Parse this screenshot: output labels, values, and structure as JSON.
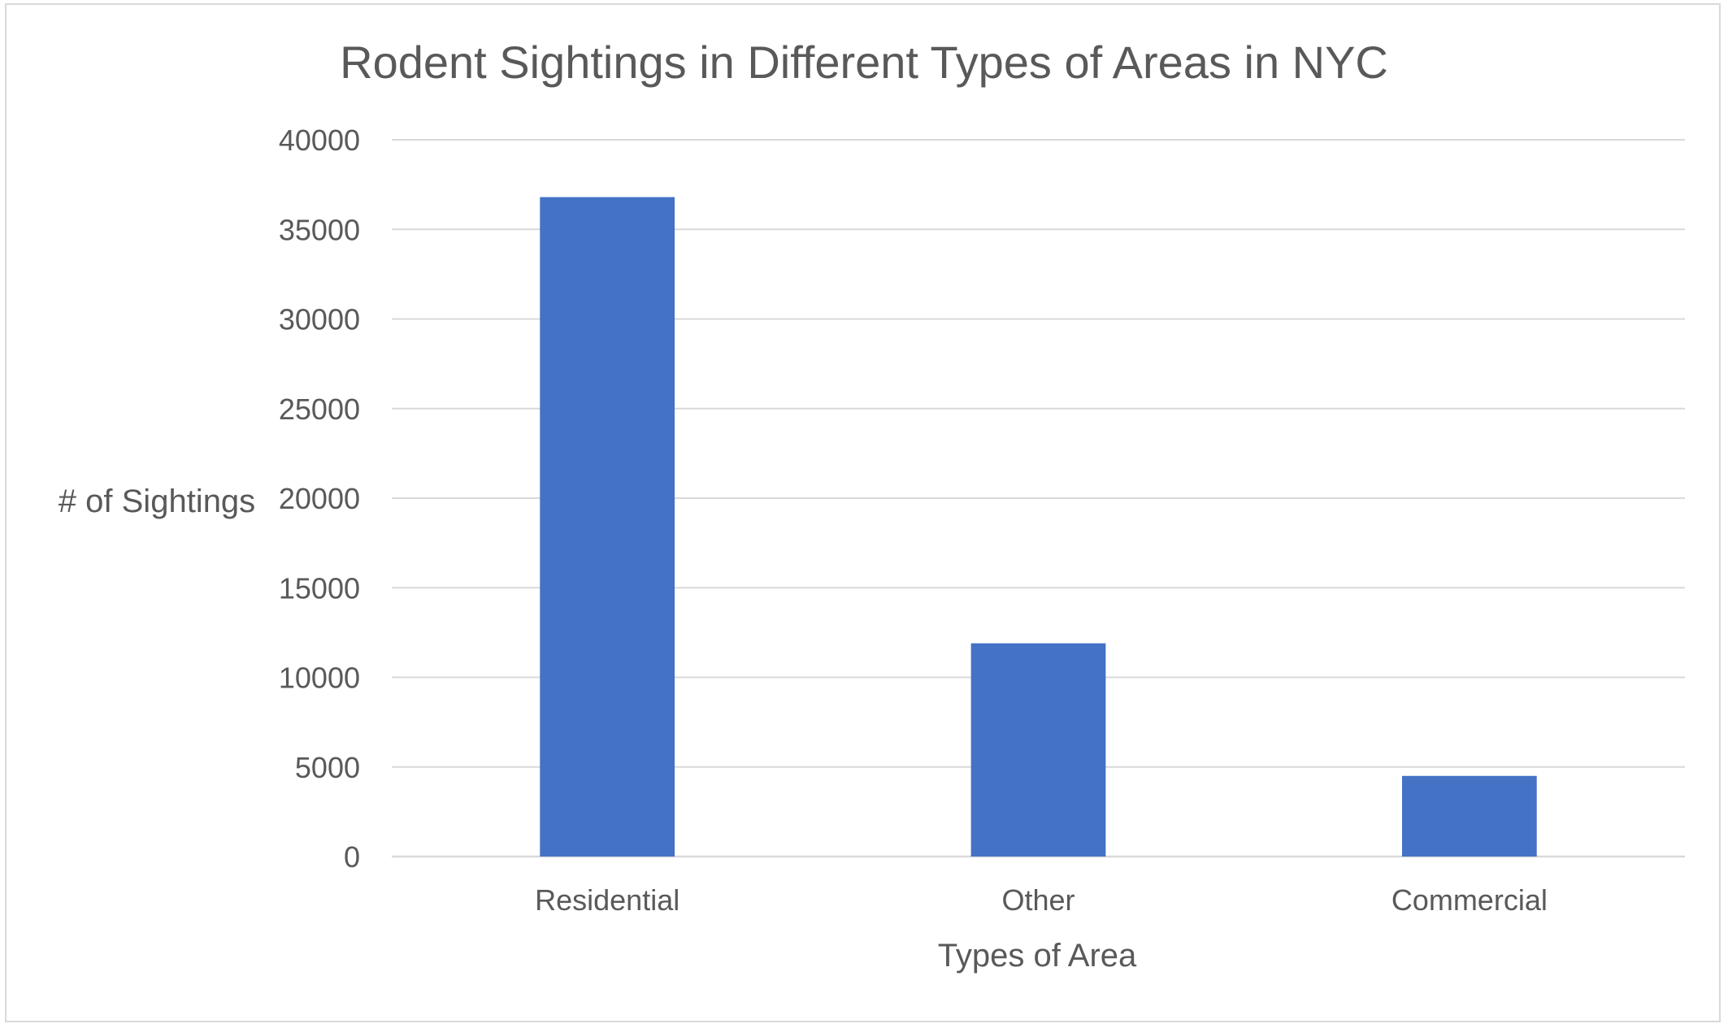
{
  "chart_data": {
    "type": "bar",
    "title": "Rodent Sightings in Different Types of Areas in NYC",
    "xlabel": "Types of Area",
    "ylabel": "# of Sightings",
    "categories": [
      "Residential",
      "Other",
      "Commercial"
    ],
    "values": [
      36800,
      11900,
      4500
    ],
    "ylim": [
      0,
      40000
    ],
    "yticks": [
      0,
      5000,
      10000,
      15000,
      20000,
      25000,
      30000,
      35000,
      40000
    ],
    "ytick_labels": [
      "0",
      "5000",
      "10000",
      "15000",
      "20000",
      "25000",
      "30000",
      "35000",
      "40000"
    ],
    "grid": true,
    "legend": "none",
    "bar_color": "#4472c4"
  }
}
